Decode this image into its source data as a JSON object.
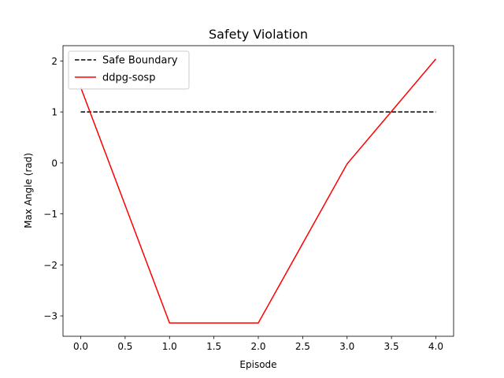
{
  "chart_data": {
    "type": "line",
    "title": "Safety Violation",
    "xlabel": "Episode",
    "ylabel": "Max Angle (rad)",
    "xlim": [
      -0.2,
      4.2
    ],
    "ylim": [
      -3.4,
      2.3
    ],
    "xticks": [
      0.0,
      0.5,
      1.0,
      1.5,
      2.0,
      2.5,
      3.0,
      3.5,
      4.0
    ],
    "xtick_labels": [
      "0.0",
      "0.5",
      "1.0",
      "1.5",
      "2.0",
      "2.5",
      "3.0",
      "3.5",
      "4.0"
    ],
    "yticks": [
      -3,
      -2,
      -1,
      0,
      1,
      2
    ],
    "ytick_labels": [
      "−3",
      "−2",
      "−1",
      "0",
      "1",
      "2"
    ],
    "grid": false,
    "legend_position": "top-left",
    "series": [
      {
        "name": "Safe Boundary",
        "color": "#000000",
        "style": "dashed",
        "x": [
          0,
          4
        ],
        "values": [
          1.0,
          1.0
        ]
      },
      {
        "name": "ddpg-sosp",
        "color": "#ff0000",
        "style": "solid",
        "x": [
          0,
          1,
          2,
          3,
          4
        ],
        "values": [
          1.48,
          -3.14,
          -3.14,
          -0.02,
          2.04
        ]
      }
    ]
  }
}
